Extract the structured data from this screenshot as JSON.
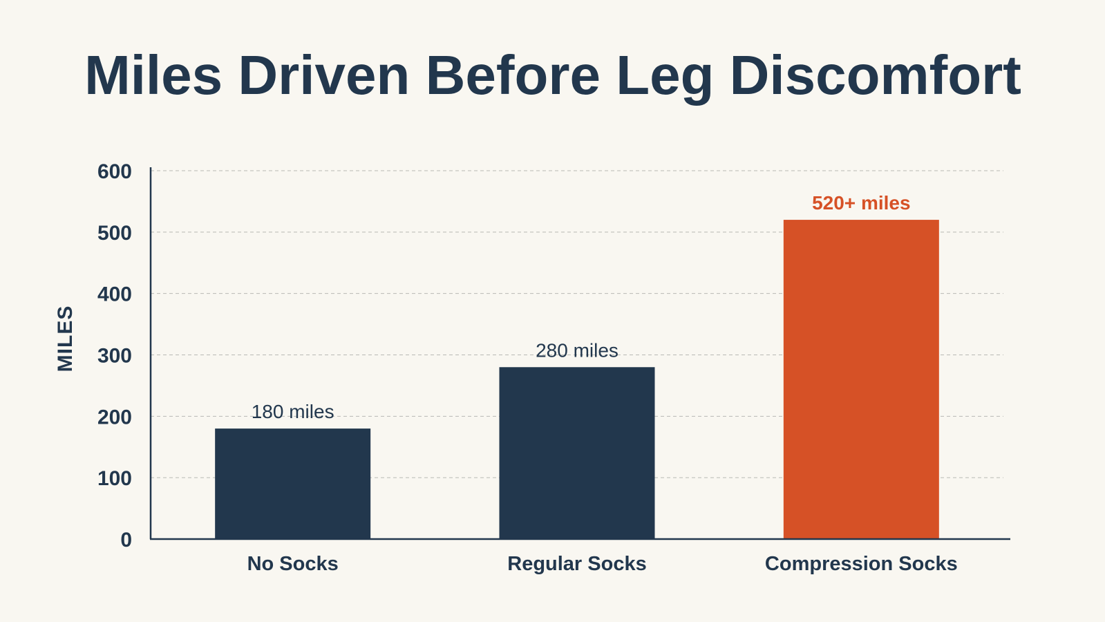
{
  "chart_data": {
    "type": "bar",
    "title": "Miles Driven Before Leg Discomfort",
    "ylabel": "MILES",
    "xlabel": "",
    "categories": [
      "No Socks",
      "Regular Socks",
      "Compression Socks"
    ],
    "values": [
      180,
      280,
      520
    ],
    "data_labels": [
      "180 miles",
      "280 miles",
      "520+ miles"
    ],
    "ylim": [
      0,
      600
    ],
    "yticks": [
      0,
      100,
      200,
      300,
      400,
      500,
      600
    ],
    "grid": true,
    "highlight_index": 2,
    "colors": {
      "background": "#f9f7f1",
      "bar": "#22374d",
      "highlight": "#d65126",
      "text": "#22374d",
      "grid": "#b9b9b4"
    }
  }
}
